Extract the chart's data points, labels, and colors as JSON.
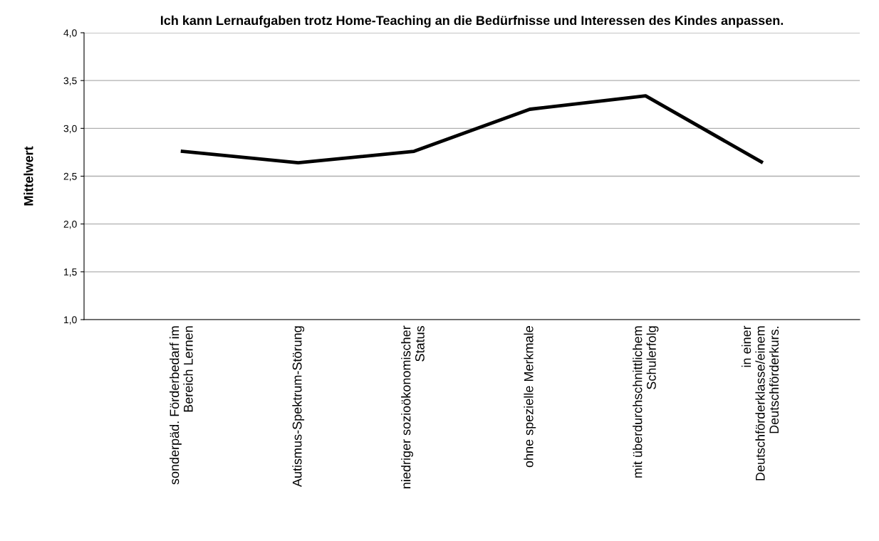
{
  "chart_data": {
    "type": "line",
    "title": "Ich kann Lernaufgaben trotz Home-Teaching an die Bedürfnisse und Interessen des Kindes anpassen.",
    "ylabel": "Mittelwert",
    "categories": [
      "sonderpäd. Förderbedarf im\nBereich Lernen",
      "Autismus-Spektrum-Störung",
      "niedriger sozioökonomischer\nStatus",
      "ohne spezielle Merkmale",
      "mit überdurchschnittlichem\nSchulerfolg",
      "in einer\nDeutschförderklasse/einem\nDeutschförderkurs."
    ],
    "series": [
      {
        "color": "#000000",
        "values": [
          2.76,
          2.64,
          2.76,
          3.2,
          3.34,
          2.65
        ]
      }
    ],
    "ylim": [
      1.0,
      4.0
    ],
    "yticks": [
      {
        "value": 1.0,
        "label": "1,0"
      },
      {
        "value": 1.5,
        "label": "1,5"
      },
      {
        "value": 2.0,
        "label": "2,0"
      },
      {
        "value": 2.5,
        "label": "2,5"
      },
      {
        "value": 3.0,
        "label": "3,0"
      },
      {
        "value": 3.5,
        "label": "3,5"
      },
      {
        "value": 4.0,
        "label": "4,0"
      }
    ],
    "grid": "y",
    "line_style": "solid"
  }
}
